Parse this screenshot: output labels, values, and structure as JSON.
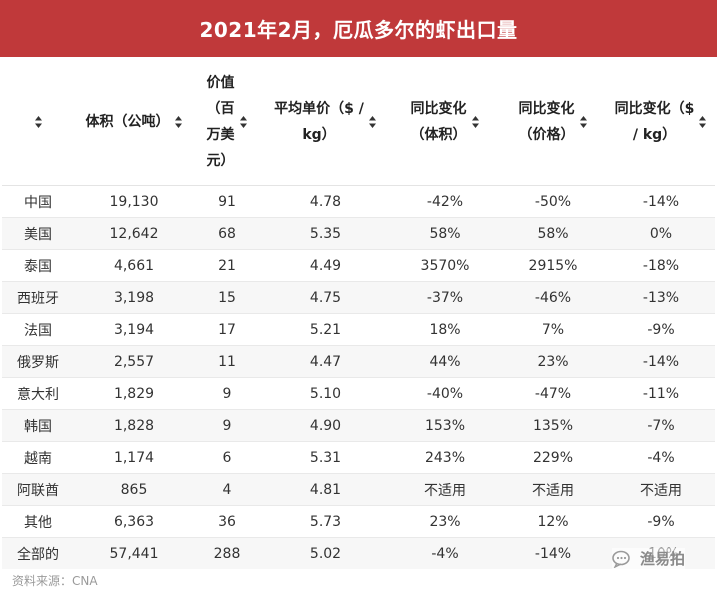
{
  "title": "2021年2月，厄瓜多尔的虾出口量",
  "colors": {
    "title_bar": "#c0393a",
    "title_text": "#ffffff",
    "row_alt": "#f7f7f7"
  },
  "icons": {
    "sort": "sort-updown-icon",
    "watermark_logo": "chat-bubble-logo-icon"
  },
  "table": {
    "headers": [
      "",
      "体积（公吨）",
      "价值（百万美元）",
      "平均单价（$ / kg）",
      "同比变化（体积）",
      "同比变化（价格）",
      "同比变化（$ / kg）"
    ],
    "header_lines": [
      [
        ""
      ],
      [
        "体积（公吨）"
      ],
      [
        "价值",
        "（百",
        "万美",
        "元）"
      ],
      [
        "平均单价（$ /",
        "kg）"
      ],
      [
        "同比变化",
        "（体积）"
      ],
      [
        "同比变化",
        "（价格）"
      ],
      [
        "同比变化（$",
        "/ kg）"
      ]
    ],
    "rows": [
      [
        "中国",
        "19,130",
        "91",
        "4.78",
        "-42%",
        "-50%",
        "-14%"
      ],
      [
        "美国",
        "12,642",
        "68",
        "5.35",
        "58%",
        "58%",
        "0%"
      ],
      [
        "泰国",
        "4,661",
        "21",
        "4.49",
        "3570%",
        "2915%",
        "-18%"
      ],
      [
        "西班牙",
        "3,198",
        "15",
        "4.75",
        "-37%",
        "-46%",
        "-13%"
      ],
      [
        "法国",
        "3,194",
        "17",
        "5.21",
        "18%",
        "7%",
        "-9%"
      ],
      [
        "俄罗斯",
        "2,557",
        "11",
        "4.47",
        "44%",
        "23%",
        "-14%"
      ],
      [
        "意大利",
        "1,829",
        "9",
        "5.10",
        "-40%",
        "-47%",
        "-11%"
      ],
      [
        "韩国",
        "1,828",
        "9",
        "4.90",
        "153%",
        "135%",
        "-7%"
      ],
      [
        "越南",
        "1,174",
        "6",
        "5.31",
        "243%",
        "229%",
        "-4%"
      ],
      [
        "阿联酋",
        "865",
        "4",
        "4.81",
        "不适用",
        "不适用",
        "不适用"
      ],
      [
        "其他",
        "6,363",
        "36",
        "5.73",
        "23%",
        "12%",
        "-9%"
      ],
      [
        "全部的",
        "57,441",
        "288",
        "5.02",
        "-4%",
        "-14%",
        "-10%"
      ]
    ]
  },
  "source": "资料来源：CNA",
  "watermark": "渔易拍"
}
